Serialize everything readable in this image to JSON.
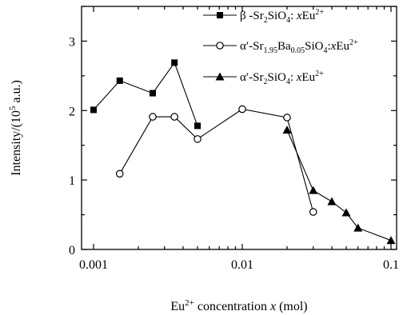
{
  "chart_data": {
    "type": "line",
    "xscale": "log",
    "xlim": [
      0.001,
      0.1
    ],
    "ylim": [
      0,
      3.5
    ],
    "xticks": [
      {
        "value": 0.001,
        "label": "0.001"
      },
      {
        "value": 0.01,
        "label": "0.01"
      },
      {
        "value": 0.1,
        "label": "0.1"
      }
    ],
    "yticks": [
      {
        "value": 0,
        "label": "0"
      },
      {
        "value": 1,
        "label": "1"
      },
      {
        "value": 2,
        "label": "2"
      },
      {
        "value": 3,
        "label": "3"
      }
    ],
    "xlabel": {
      "before_sup": "Eu",
      "sup": "2+",
      "after_sup": " concentration ",
      "italic": "x",
      "tail": " (mol)"
    },
    "ylabel": {
      "before_sup": "Intensity/(10",
      "sup": "5",
      "after_sup": " a.u.)"
    },
    "legend_position": "top-right",
    "series": [
      {
        "marker": "square-filled",
        "legend_parts": [
          {
            "t": "β -Sr"
          },
          {
            "t": "2",
            "sub": true
          },
          {
            "t": "SiO"
          },
          {
            "t": "4",
            "sub": true
          },
          {
            "t": ": "
          },
          {
            "t": "x",
            "italic": true
          },
          {
            "t": "Eu"
          },
          {
            "t": "2+",
            "sup": true
          }
        ],
        "x": [
          0.001,
          0.0015,
          0.0025,
          0.0035,
          0.005
        ],
        "values": [
          2.01,
          2.43,
          2.25,
          2.69,
          1.78
        ]
      },
      {
        "marker": "circle-open",
        "legend_parts": [
          {
            "t": "α′-Sr"
          },
          {
            "t": "1.95",
            "sub": true
          },
          {
            "t": "Ba"
          },
          {
            "t": "0.05",
            "sub": true
          },
          {
            "t": "SiO"
          },
          {
            "t": "4",
            "sub": true
          },
          {
            "t": ":"
          },
          {
            "t": "x",
            "italic": true
          },
          {
            "t": "Eu"
          },
          {
            "t": "2+",
            "sup": true
          }
        ],
        "x": [
          0.0015,
          0.0025,
          0.0035,
          0.005,
          0.01,
          0.02,
          0.03
        ],
        "values": [
          1.09,
          1.91,
          1.91,
          1.59,
          2.02,
          1.9,
          0.54
        ]
      },
      {
        "marker": "triangle-filled",
        "legend_parts": [
          {
            "t": "α′-Sr"
          },
          {
            "t": "2",
            "sub": true
          },
          {
            "t": "SiO"
          },
          {
            "t": "4",
            "sub": true
          },
          {
            "t": ": "
          },
          {
            "t": "x",
            "italic": true
          },
          {
            "t": "Eu"
          },
          {
            "t": "2+",
            "sup": true
          }
        ],
        "x": [
          0.02,
          0.03,
          0.04,
          0.05,
          0.06,
          0.1
        ],
        "values": [
          1.72,
          0.85,
          0.69,
          0.53,
          0.31,
          0.13
        ]
      }
    ]
  }
}
